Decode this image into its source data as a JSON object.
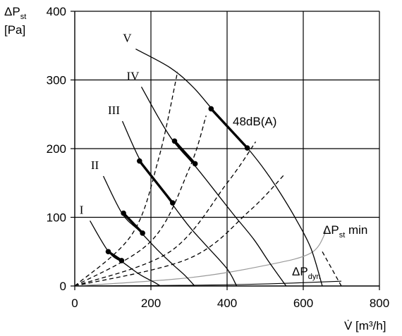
{
  "chart_data": {
    "type": "line",
    "xlim": [
      0,
      800
    ],
    "ylim": [
      0,
      400
    ],
    "x_ticks": [
      "0",
      "200",
      "400",
      "600",
      "800"
    ],
    "y_ticks": [
      "0",
      "100",
      "200",
      "300",
      "400"
    ],
    "xlabel": "V̇ [m³/h]",
    "ylabel_line1": "ΔP",
    "ylabel_sub": "st",
    "ylabel_line2": "[Pa]",
    "grid": true,
    "fan_curves": [
      {
        "name": "I",
        "x": [
          40,
          90,
          130,
          170,
          210,
          225
        ],
        "y": [
          95,
          49,
          33,
          17,
          5,
          0
        ],
        "op_range": [
          [
            88,
            50
          ],
          [
            123,
            37
          ]
        ]
      },
      {
        "name": "II",
        "x": [
          75,
          125,
          170,
          220,
          260,
          290,
          315
        ],
        "y": [
          160,
          105,
          80,
          51,
          30,
          15,
          0
        ],
        "op_range": [
          [
            128,
            106
          ],
          [
            178,
            77
          ]
        ]
      },
      {
        "name": "III",
        "x": [
          125,
          170,
          210,
          255,
          300,
          340,
          400,
          425
        ],
        "y": [
          240,
          185,
          155,
          120,
          87,
          62,
          25,
          0
        ],
        "op_range": [
          [
            170,
            182
          ],
          [
            257,
            121
          ]
        ]
      },
      {
        "name": "IV",
        "x": [
          175,
          220,
          260,
          320,
          380,
          420,
          470,
          510,
          555
        ],
        "y": [
          290,
          245,
          210,
          172,
          130,
          102,
          68,
          35,
          0
        ],
        "op_range": [
          [
            262,
            211
          ],
          [
            316,
            178
          ]
        ]
      },
      {
        "name": "V",
        "x": [
          160,
          250,
          310,
          360,
          410,
          455,
          500,
          540,
          580,
          620,
          650
        ],
        "y": [
          345,
          318,
          290,
          258,
          228,
          200,
          168,
          135,
          98,
          55,
          0
        ],
        "op_range": [
          [
            358,
            258
          ],
          [
            453,
            201
          ]
        ]
      }
    ],
    "system_curves": [
      {
        "x": [
          0,
          150,
          220,
          270
        ],
        "y": [
          0,
          75,
          185,
          312
        ]
      },
      {
        "x": [
          0,
          200,
          300,
          345
        ],
        "y": [
          0,
          65,
          170,
          248
        ]
      },
      {
        "x": [
          0,
          250,
          400,
          475
        ],
        "y": [
          0,
          50,
          150,
          210
        ]
      },
      {
        "x": [
          0,
          300,
          460,
          550
        ],
        "y": [
          0,
          40,
          110,
          162
        ]
      }
    ],
    "min_pressure_curve": {
      "x": [
        0,
        300,
        500,
        620,
        660
      ],
      "y": [
        0,
        12,
        30,
        48,
        80
      ]
    },
    "dynamic_pressure_curve": {
      "x": [
        0,
        300,
        500,
        700
      ],
      "y": [
        0,
        1,
        3,
        7
      ]
    },
    "min_pressure_limit": {
      "x": [
        650,
        700
      ],
      "y": [
        50,
        0
      ]
    },
    "annotations": {
      "noise": "48dB(A)",
      "min_pressure_main": "ΔP",
      "min_pressure_sub": "st",
      "min_pressure_suffix": " min",
      "dynamic_main": "ΔP",
      "dynamic_sub": "dyn"
    }
  }
}
